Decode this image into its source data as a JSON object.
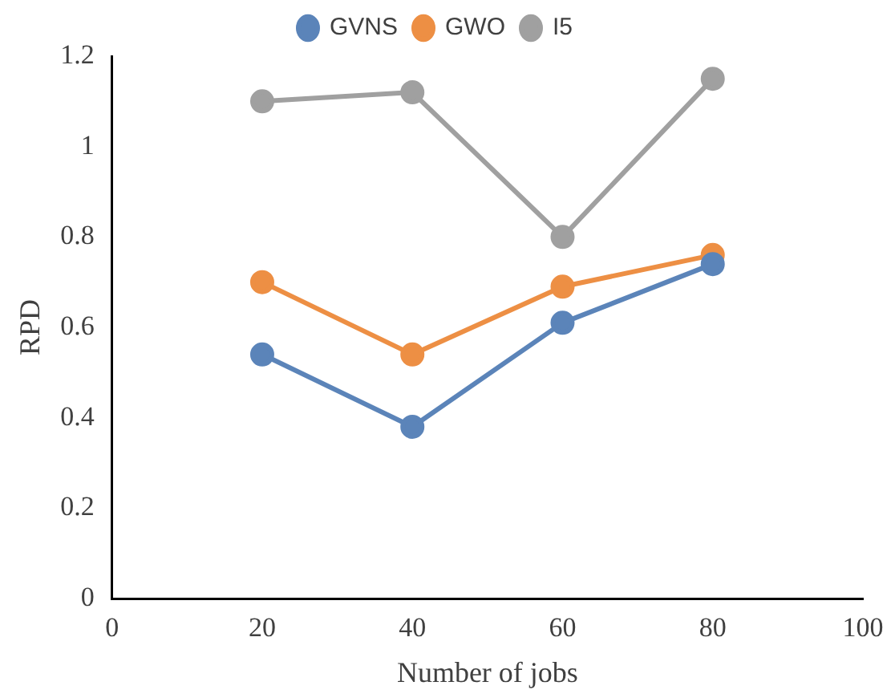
{
  "chart_data": {
    "type": "line",
    "xlabel": "Number of jobs",
    "ylabel": "RPD",
    "x": [
      20,
      40,
      60,
      80
    ],
    "series": [
      {
        "name": "GVNS",
        "color": "#5b84b9",
        "values": [
          0.54,
          0.38,
          0.61,
          0.74
        ]
      },
      {
        "name": "GWO",
        "color": "#ed8f44",
        "values": [
          0.7,
          0.54,
          0.69,
          0.76
        ]
      },
      {
        "name": "I5",
        "color": "#a0a0a0",
        "values": [
          1.1,
          1.12,
          0.8,
          1.15
        ]
      }
    ],
    "xlim": [
      0,
      100
    ],
    "xticks": [
      0,
      20,
      40,
      60,
      80,
      100
    ],
    "ylim": [
      0,
      1.2
    ],
    "yticks": [
      0,
      0.2,
      0.4,
      0.6,
      0.8,
      1,
      1.2
    ],
    "grid": false,
    "legend": "top",
    "marker": "circle",
    "line_style": "solid"
  }
}
